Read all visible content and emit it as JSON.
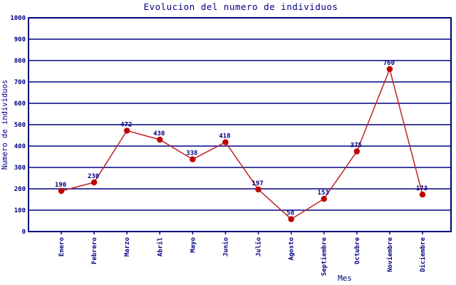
{
  "title": "Evolucion del numero de individuos",
  "colors": {
    "axis": "#000080",
    "grid": "#000080",
    "text": "#000080",
    "line": "#BB2222",
    "marker": "#C00000",
    "background": "#FFFFFF"
  },
  "chart_data": {
    "type": "line",
    "title": "Evolucion del numero de individuos",
    "xlabel": "Mes",
    "ylabel": "Numero de individuos",
    "categories": [
      "Enero",
      "Febrero",
      "Marzo",
      "Abril",
      "Mayo",
      "Junio",
      "Julio",
      "Agosto",
      "Septiembre",
      "Octubre",
      "Noviembre",
      "Diciembre"
    ],
    "values": [
      190,
      230,
      472,
      430,
      338,
      418,
      197,
      58,
      153,
      375,
      760,
      173
    ],
    "point_labels": [
      "190",
      "230",
      "472",
      "430",
      "338",
      "418",
      "197",
      "58",
      "153",
      "375",
      "760",
      "173"
    ],
    "ylim": [
      0,
      1000
    ],
    "yticks": [
      0,
      100,
      200,
      300,
      400,
      500,
      600,
      700,
      800,
      900,
      1000
    ],
    "grid": true,
    "legend": "none",
    "marker": "filled-circle"
  }
}
